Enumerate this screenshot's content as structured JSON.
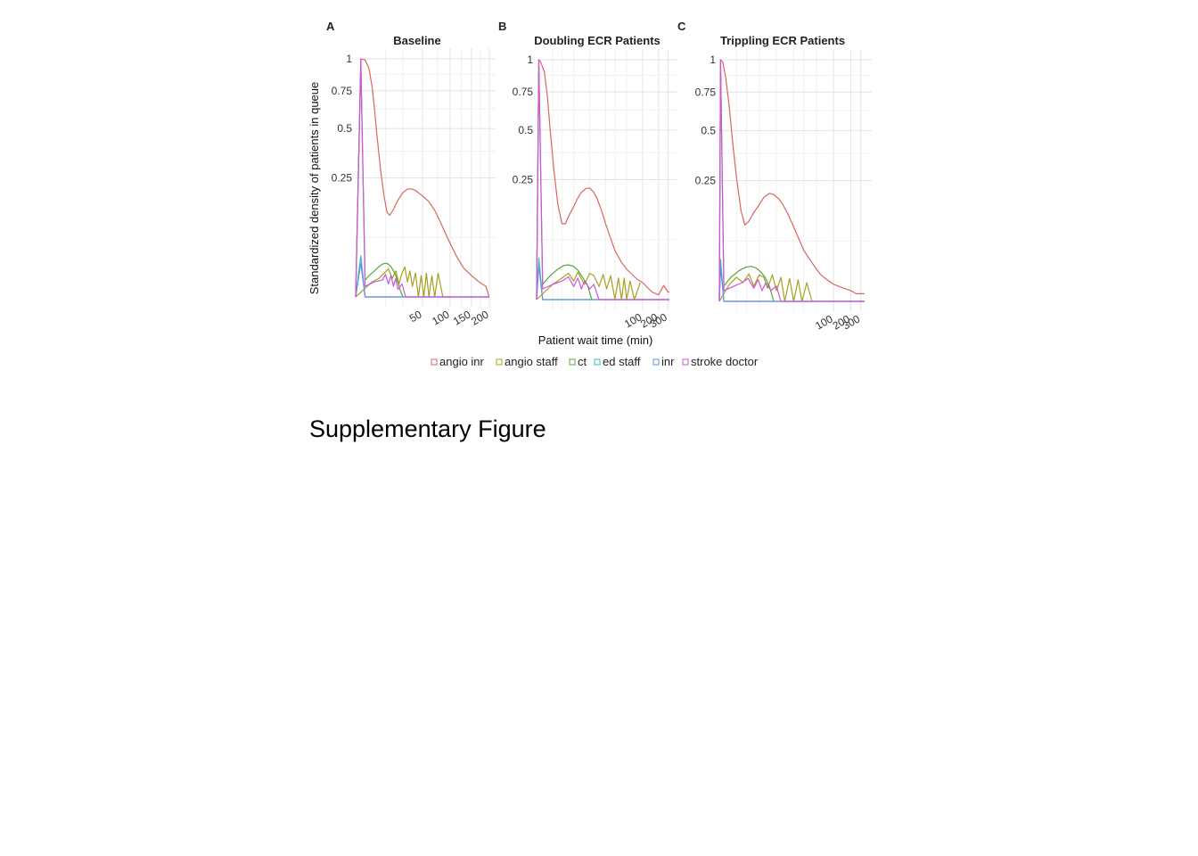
{
  "figure": {
    "caption": "Supplementary Figure",
    "shared_xlabel": "Patient wait time (min)",
    "shared_ylabel": "Standardized density of patients in queue"
  },
  "colors": {
    "angio inr": "#d9665f",
    "angio staff": "#a8a020",
    "ct": "#55a83a",
    "ed staff": "#3db6c2",
    "inr": "#6a8fe0",
    "stroke doctor": "#cc55d9",
    "grid_major": "#e3e3e3",
    "grid_minor": "#f1f1f1"
  },
  "legend": {
    "position": "bottom",
    "items": [
      "angio inr",
      "angio staff",
      "ct",
      "ed staff",
      "inr",
      "stroke doctor"
    ]
  },
  "chart_data": [
    {
      "type": "line",
      "letter": "A",
      "title": "Baseline",
      "x_scale": "sqrt",
      "y_scale": "sqrt",
      "xlim": [
        0,
        200
      ],
      "ylim": [
        0,
        1
      ],
      "x_ticks": [
        50,
        100,
        150,
        200
      ],
      "x_tick_labels": [
        "50",
        "100",
        "150",
        "200"
      ],
      "y_ticks": [
        0.25,
        0.5,
        0.75,
        1
      ],
      "y_tick_labels": [
        "0.25",
        "0.5",
        "0.75",
        "1"
      ],
      "grid": true,
      "series": [
        {
          "name": "angio inr",
          "x": [
            0,
            0.3,
            1,
            2,
            3,
            4,
            5,
            7,
            9,
            11,
            13,
            16,
            20,
            25,
            30,
            35,
            40,
            50,
            60,
            70,
            80,
            90,
            100,
            115,
            130,
            150,
            170,
            190,
            199
          ],
          "y": [
            0,
            1.0,
            0.99,
            0.92,
            0.78,
            0.62,
            0.47,
            0.28,
            0.18,
            0.126,
            0.118,
            0.135,
            0.165,
            0.192,
            0.205,
            0.206,
            0.2,
            0.18,
            0.16,
            0.132,
            0.1,
            0.072,
            0.05,
            0.028,
            0.015,
            0.008,
            0.004,
            0.002,
            0.0
          ]
        },
        {
          "name": "angio staff",
          "x": [
            0,
            3,
            6,
            9,
            12,
            15,
            18,
            21,
            24,
            27,
            30,
            33,
            36,
            40,
            44,
            48,
            52,
            56,
            60,
            65,
            70,
            76,
            85,
            100
          ],
          "y": [
            0,
            0.004,
            0.006,
            0.01,
            0.014,
            0.006,
            0.012,
            0.003,
            0.01,
            0.016,
            0.004,
            0.012,
            0.002,
            0.01,
            0.0,
            0.008,
            0.0,
            0.01,
            0.0,
            0.008,
            0.0,
            0.01,
            0.0,
            0.0
          ]
        },
        {
          "name": "ct",
          "x": [
            0,
            0.3,
            1,
            2,
            4,
            6,
            8,
            10,
            12,
            14,
            16,
            18,
            20,
            22,
            25
          ],
          "y": [
            0,
            0.95,
            0.005,
            0.008,
            0.012,
            0.016,
            0.019,
            0.02,
            0.019,
            0.016,
            0.012,
            0.008,
            0.004,
            0.001,
            0
          ]
        },
        {
          "name": "ed staff",
          "x": [
            0,
            0.3,
            1,
            199
          ],
          "y": [
            0,
            0.03,
            0,
            0
          ]
        },
        {
          "name": "inr",
          "x": [
            0,
            0.3,
            1,
            199
          ],
          "y": [
            0,
            0.02,
            0,
            0
          ]
        },
        {
          "name": "stroke doctor",
          "x": [
            0,
            0.3,
            1,
            4,
            8,
            10,
            12,
            14,
            16,
            18,
            20,
            24,
            28,
            200
          ],
          "y": [
            0,
            1.0,
            0.002,
            0.004,
            0.005,
            0.009,
            0.003,
            0.008,
            0.002,
            0.006,
            0.001,
            0.003,
            0,
            0
          ]
        }
      ]
    },
    {
      "type": "line",
      "letter": "B",
      "title": "Doubling ECR Patients",
      "x_scale": "log",
      "y_scale": "sqrt",
      "xlim": [
        1,
        320
      ],
      "ylim": [
        0,
        1
      ],
      "x_ticks": [
        100,
        200,
        300
      ],
      "x_tick_labels": [
        "100",
        "200",
        "300"
      ],
      "y_ticks": [
        0.25,
        0.5,
        0.75,
        1
      ],
      "y_tick_labels": [
        "0.25",
        "0.5",
        "0.75",
        "1"
      ],
      "grid": true,
      "series": [
        {
          "name": "angio inr",
          "x": [
            1,
            1.1,
            1.2,
            1.4,
            1.6,
            1.8,
            2.1,
            2.5,
            3,
            3.5,
            4,
            5,
            6,
            7,
            8.5,
            10,
            12,
            14,
            17,
            20,
            25,
            30,
            40,
            50,
            60,
            80,
            100,
            150,
            200,
            250,
            300,
            320
          ],
          "y": [
            0,
            1.0,
            0.98,
            0.9,
            0.72,
            0.5,
            0.3,
            0.16,
            0.1,
            0.1,
            0.12,
            0.15,
            0.18,
            0.2,
            0.215,
            0.216,
            0.2,
            0.175,
            0.135,
            0.1,
            0.065,
            0.042,
            0.024,
            0.016,
            0.012,
            0.007,
            0.005,
            0.001,
            0.0004,
            0.0035,
            0.001,
            0.001
          ]
        },
        {
          "name": "angio staff",
          "x": [
            1,
            2,
            3,
            4,
            5,
            6,
            8,
            10,
            12,
            15,
            18,
            21,
            25,
            30,
            35,
            40,
            45,
            50,
            58,
            70,
            90
          ],
          "y": [
            0,
            0.004,
            0.008,
            0.012,
            0.006,
            0.013,
            0.004,
            0.012,
            0.01,
            0.003,
            0.011,
            0.002,
            0.01,
            0.0,
            0.008,
            0.0,
            0.008,
            0.0,
            0.006,
            0.0,
            0.005
          ]
        },
        {
          "name": "ct",
          "x": [
            1,
            1.1,
            1.3,
            1.8,
            2.5,
            3.2,
            4,
            5,
            6,
            7,
            9,
            11
          ],
          "y": [
            0,
            0.95,
            0.004,
            0.01,
            0.016,
            0.02,
            0.021,
            0.019,
            0.015,
            0.01,
            0.004,
            0
          ]
        },
        {
          "name": "ed staff",
          "x": [
            1,
            1.1,
            1.3,
            320
          ],
          "y": [
            0,
            0.03,
            0,
            0
          ]
        },
        {
          "name": "inr",
          "x": [
            1,
            1.1,
            1.3,
            320
          ],
          "y": [
            0,
            0.02,
            0,
            0
          ]
        },
        {
          "name": "stroke doctor",
          "x": [
            1,
            1.1,
            1.3,
            2,
            3,
            4,
            5,
            6,
            7,
            8,
            10,
            12,
            15,
            320
          ],
          "y": [
            0,
            1.0,
            0.002,
            0.004,
            0.006,
            0.009,
            0.003,
            0.008,
            0.002,
            0.006,
            0.002,
            0.004,
            0,
            0
          ]
        }
      ]
    },
    {
      "type": "line",
      "letter": "C",
      "title": "Trippling ECR Patients",
      "x_scale": "log",
      "y_scale": "sqrt",
      "xlim": [
        1,
        350
      ],
      "ylim": [
        0,
        1
      ],
      "x_ticks": [
        100,
        200,
        300
      ],
      "x_tick_labels": [
        "100",
        "200",
        "300"
      ],
      "y_ticks": [
        0.25,
        0.5,
        0.75,
        1
      ],
      "y_tick_labels": [
        "0.25",
        "0.5",
        "0.75",
        "1"
      ],
      "grid": true,
      "series": [
        {
          "name": "angio inr",
          "x": [
            1,
            1.05,
            1.15,
            1.3,
            1.5,
            1.7,
            2,
            2.4,
            2.8,
            3.3,
            4,
            5,
            6,
            7.5,
            9,
            11,
            13,
            16,
            20,
            25,
            30,
            40,
            50,
            60,
            80,
            100,
            150,
            200,
            250,
            300,
            350
          ],
          "y": [
            0,
            1.0,
            0.98,
            0.85,
            0.64,
            0.44,
            0.26,
            0.14,
            0.1,
            0.11,
            0.135,
            0.16,
            0.185,
            0.2,
            0.195,
            0.18,
            0.16,
            0.13,
            0.095,
            0.065,
            0.045,
            0.028,
            0.018,
            0.012,
            0.0075,
            0.005,
            0.003,
            0.002,
            0.001,
            0.001,
            0.001
          ]
        },
        {
          "name": "angio staff",
          "x": [
            1,
            1.5,
            2,
            2.6,
            3.3,
            4,
            5,
            6,
            7,
            8.5,
            10,
            12,
            14,
            17,
            20,
            24,
            28,
            34,
            42
          ],
          "y": [
            0,
            0.005,
            0.01,
            0.006,
            0.013,
            0.004,
            0.012,
            0.01,
            0.003,
            0.012,
            0.002,
            0.01,
            0.0,
            0.009,
            0.0,
            0.008,
            0.0,
            0.006,
            0.0
          ]
        },
        {
          "name": "ct",
          "x": [
            1,
            1.05,
            1.2,
            1.6,
            2.2,
            2.9,
            3.6,
            4.4,
            5.3,
            6.3,
            7.5,
            9
          ],
          "y": [
            0,
            0.95,
            0.004,
            0.01,
            0.016,
            0.02,
            0.021,
            0.019,
            0.015,
            0.01,
            0.004,
            0
          ]
        },
        {
          "name": "ed staff",
          "x": [
            1,
            1.05,
            1.2,
            350
          ],
          "y": [
            0,
            0.03,
            0,
            0
          ]
        },
        {
          "name": "inr",
          "x": [
            1,
            1.05,
            1.2,
            350
          ],
          "y": [
            0,
            0.02,
            0,
            0
          ]
        },
        {
          "name": "stroke doctor",
          "x": [
            1,
            1.05,
            1.2,
            1.8,
            2.5,
            3.2,
            4,
            4.8,
            5.6,
            6.5,
            8,
            10,
            12,
            350
          ],
          "y": [
            0,
            1.0,
            0.002,
            0.004,
            0.006,
            0.009,
            0.003,
            0.008,
            0.002,
            0.006,
            0.002,
            0.004,
            0,
            0
          ]
        }
      ]
    }
  ]
}
